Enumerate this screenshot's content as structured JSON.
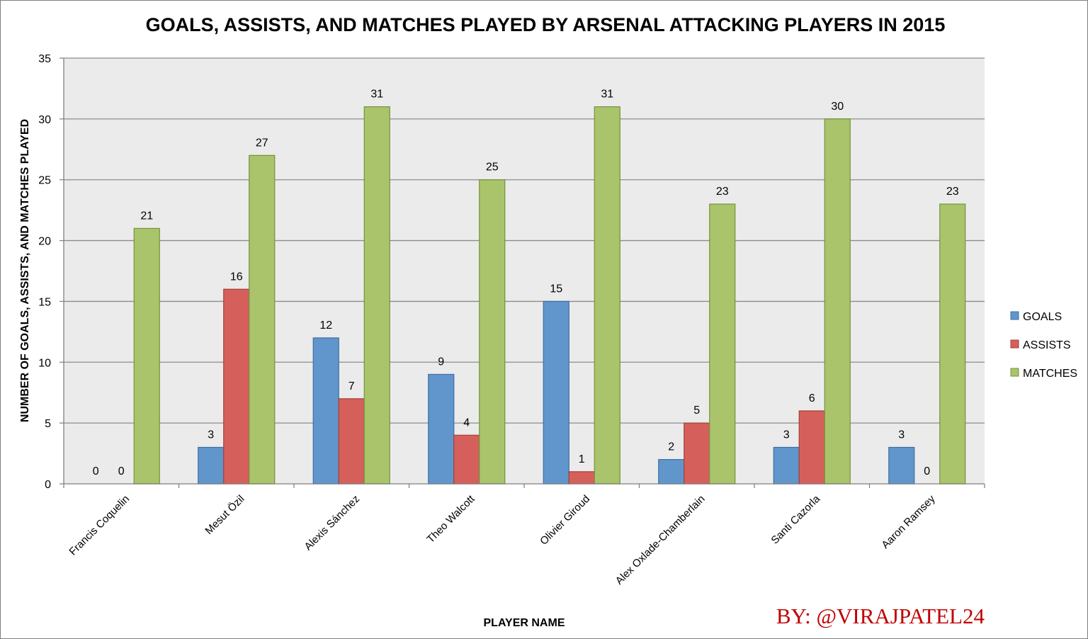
{
  "chart_data": {
    "type": "bar",
    "title": "GOALS, ASSISTS, AND MATCHES PLAYED BY ARSENAL ATTACKING PLAYERS IN 2015",
    "xlabel": "PLAYER NAME",
    "ylabel": "NUMBER OF GOALS, ASSISTS, AND MATCHES PLAYED",
    "ylim": [
      0,
      35
    ],
    "ytick_step": 5,
    "yticks": [
      "0",
      "5",
      "10",
      "15",
      "20",
      "25",
      "30",
      "35"
    ],
    "grid": true,
    "legend_position": "right",
    "categories": [
      "Francis Coquelin",
      "Mesut Özil",
      "Alexis Sánchez",
      "Theo Walcott",
      "Olivier Giroud",
      "Alex Oxlade-Chamberlain",
      "Santi Cazorla",
      "Aaron Ramsey"
    ],
    "series": [
      {
        "name": "GOALS",
        "color": "#6096cc",
        "border": "#3e6fa3",
        "values": [
          0,
          3,
          12,
          9,
          15,
          2,
          3,
          3
        ],
        "labels": [
          "0",
          "3",
          "12",
          "9",
          "15",
          "2",
          "3",
          "3"
        ]
      },
      {
        "name": "ASSISTS",
        "color": "#d5605b",
        "border": "#a53f3a",
        "values": [
          0,
          16,
          7,
          4,
          1,
          5,
          6,
          0
        ],
        "labels": [
          "0",
          "16",
          "7",
          "4",
          "1",
          "5",
          "6",
          "0"
        ]
      },
      {
        "name": "MATCHES",
        "color": "#a9c46b",
        "border": "#76933c",
        "values": [
          21,
          27,
          31,
          25,
          31,
          23,
          30,
          23
        ],
        "labels": [
          "21",
          "27",
          "31",
          "25",
          "31",
          "23",
          "30",
          "23"
        ]
      }
    ],
    "plot_background": "#ebebeb",
    "grid_color": "#8c8c8c"
  },
  "credit": {
    "text": "BY: @VIRAJPATEL24",
    "color": "#c00000"
  }
}
